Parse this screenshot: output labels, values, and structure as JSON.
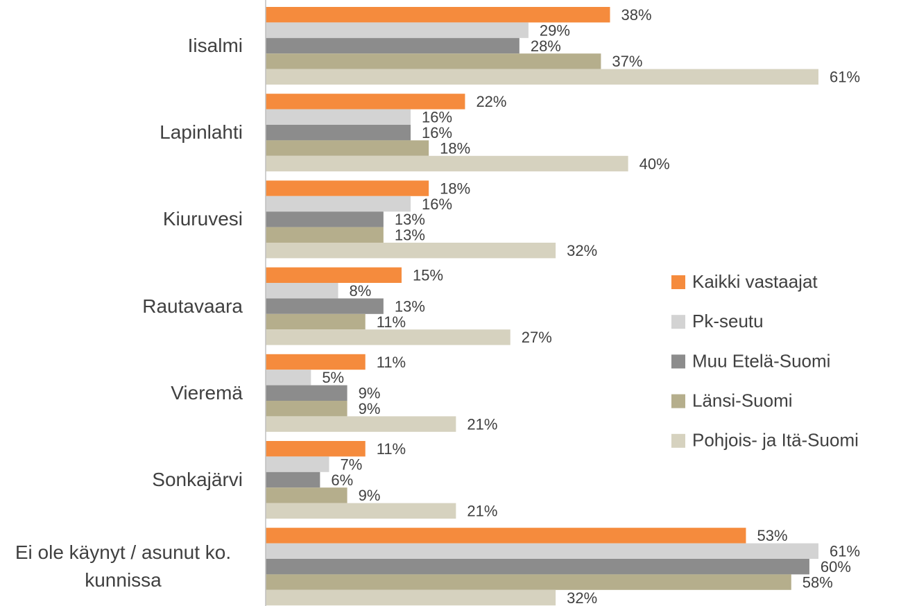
{
  "chart_data": {
    "type": "bar",
    "orientation": "horizontal",
    "categories": [
      "Iisalmi",
      "Lapinlahti",
      "Kiuruvesi",
      "Rautavaara",
      "Vieremä",
      "Sonkajärvi",
      "Ei ole käynyt / asunut ko. kunnissa"
    ],
    "xlim": [
      0,
      61
    ],
    "legend": "right",
    "series": [
      {
        "name": "Kaikki vastaajat",
        "color": "#f58b3d",
        "values": [
          38,
          22,
          18,
          15,
          11,
          11,
          53
        ],
        "value_labels": [
          "38%",
          "22%",
          "18%",
          "15%",
          "11%",
          "11%",
          "53%"
        ]
      },
      {
        "name": "Pk-seutu",
        "color": "#d3d3d3",
        "values": [
          29,
          16,
          16,
          8,
          5,
          7,
          61
        ],
        "value_labels": [
          "29%",
          "16%",
          "16%",
          "8%",
          "5%",
          "7%",
          "61%"
        ]
      },
      {
        "name": "Muu Etelä-Suomi",
        "color": "#8c8c8c",
        "values": [
          28,
          16,
          13,
          13,
          9,
          6,
          60
        ],
        "value_labels": [
          "28%",
          "16%",
          "13%",
          "13%",
          "9%",
          "6%",
          "60%"
        ]
      },
      {
        "name": "Länsi-Suomi",
        "color": "#b5ae8c",
        "values": [
          37,
          18,
          13,
          11,
          9,
          9,
          58
        ],
        "value_labels": [
          "37%",
          "18%",
          "13%",
          "11%",
          "9%",
          "9%",
          "58%"
        ]
      },
      {
        "name": "Pohjois- ja Itä-Suomi",
        "color": "#d6d2bf",
        "values": [
          61,
          40,
          32,
          27,
          21,
          21,
          32
        ],
        "value_labels": [
          "61%",
          "40%",
          "32%",
          "27%",
          "21%",
          "21%",
          "32%"
        ]
      }
    ]
  }
}
